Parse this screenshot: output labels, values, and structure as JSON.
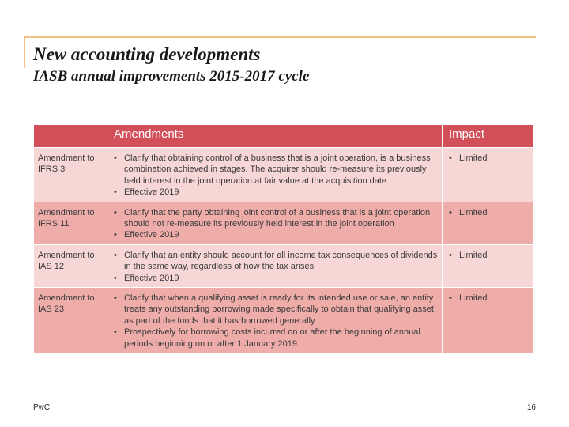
{
  "slide": {
    "title": "New accounting developments",
    "subtitle": "IASB annual improvements 2015-2017 cycle"
  },
  "table": {
    "headers": {
      "col1": "",
      "amendments": "Amendments",
      "impact": "Impact"
    },
    "rows": [
      {
        "name": "Amendment to IFRS 3",
        "bullets": [
          "Clarify that obtaining control of a business that is a joint operation, is a business combination achieved in stages. The acquirer should re-measure its previously held interest in the joint operation at fair value at the acquisition date",
          "Effective 2019"
        ],
        "impact": "Limited"
      },
      {
        "name": "Amendment to IFRS 11",
        "bullets": [
          "Clarify that the party obtaining joint control of a business that is a joint operation should not re-measure its previously held interest in the joint operation",
          "Effective 2019"
        ],
        "impact": "Limited"
      },
      {
        "name": "Amendment to IAS 12",
        "bullets": [
          "Clarify that an entity should account for all income tax consequences of dividends in the same way, regardless of how the tax arises",
          "Effective 2019"
        ],
        "impact": "Limited"
      },
      {
        "name": "Amendment to IAS 23",
        "bullets": [
          "Clarify that when a qualifying asset is ready for its intended use or sale, an entity treats any outstanding borrowing made specifically to obtain that qualifying asset as part of the funds that it has borrowed generally",
          "Prospectively for borrowing costs incurred on or after the beginning of annual periods beginning on or after 1 January 2019"
        ],
        "impact": "Limited"
      }
    ]
  },
  "footer": {
    "brand": "PwC",
    "page_number": "16"
  },
  "colors": {
    "header": "#d34f5a",
    "row_light": "#f7d6d6",
    "row_dark": "#efadaa",
    "frame_line": "#f3c187"
  }
}
